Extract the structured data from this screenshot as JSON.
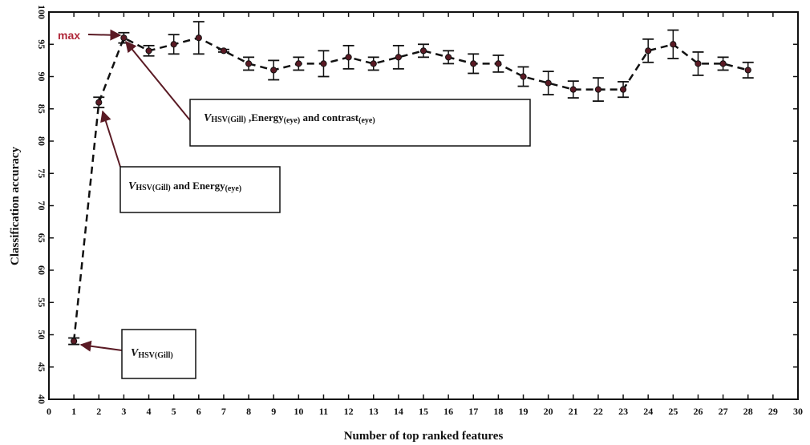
{
  "chart_data": {
    "type": "line",
    "xlabel": "Number of  top ranked features",
    "ylabel": "Classification  accuracy",
    "xlim": [
      0,
      30
    ],
    "ylim": [
      40,
      100
    ],
    "xticks": [
      "0",
      "1",
      "2",
      "3",
      "4",
      "5",
      "6",
      "7",
      "8",
      "9",
      "10",
      "11",
      "12",
      "13",
      "14",
      "15",
      "16",
      "17",
      "18",
      "19",
      "20",
      "21",
      "22",
      "23",
      "24",
      "25",
      "26",
      "27",
      "28",
      "29",
      "30"
    ],
    "yticks": [
      "40",
      "45",
      "50",
      "55",
      "60",
      "65",
      "70",
      "75",
      "80",
      "85",
      "90",
      "95",
      "100"
    ],
    "grid": false,
    "series": [
      {
        "x": [
          1,
          2,
          3,
          4,
          5,
          6,
          7,
          8,
          9,
          10,
          11,
          12,
          13,
          14,
          15,
          16,
          17,
          18,
          19,
          20,
          21,
          22,
          23,
          24,
          25,
          26,
          27,
          28
        ],
        "y": [
          49,
          86,
          96,
          94,
          95,
          96,
          94,
          92,
          91,
          92,
          92,
          93,
          92,
          93,
          94,
          93,
          92,
          92,
          90,
          89,
          88,
          88,
          88,
          94,
          95,
          92,
          92,
          91
        ],
        "err": [
          0.5,
          0.8,
          0.8,
          0.8,
          1.5,
          2.5,
          0.2,
          1.0,
          1.5,
          1.0,
          2.0,
          1.8,
          1.0,
          1.8,
          1.0,
          1.0,
          1.5,
          1.3,
          1.5,
          1.8,
          1.3,
          1.8,
          1.2,
          1.8,
          2.2,
          1.8,
          1.0,
          1.2
        ],
        "color": "#5a1a24",
        "line_style": "dashed"
      }
    ],
    "annotations": {
      "max_label": "max",
      "box1": {
        "prefix": "V",
        "sub": "HSV(Gill)"
      },
      "box2": {
        "prefix": "V",
        "sub": "HSV(Gill)",
        "rest": " and Energy",
        "sub2": "(eye)"
      },
      "box3": {
        "prefix": "V",
        "sub": "HSV(Gill)",
        "rest": " ,Energy",
        "sub2": "(eye)",
        "rest2": " and contrast",
        "sub3": "(eye)"
      }
    }
  }
}
